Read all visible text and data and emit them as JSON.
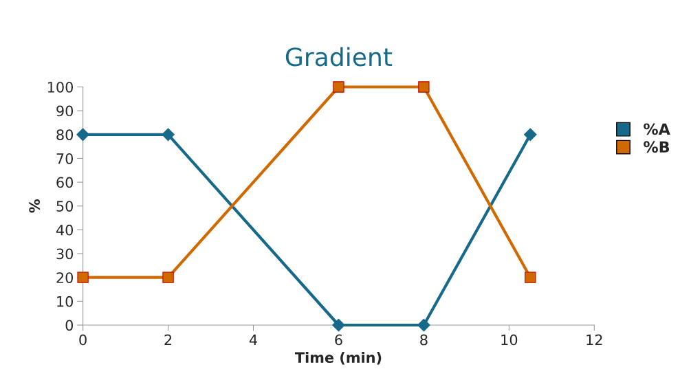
{
  "chart_data": {
    "type": "line",
    "title": "Gradient",
    "xlabel": "Time (min)",
    "ylabel": "%",
    "xlim": [
      0,
      12
    ],
    "xticks": [
      0,
      2,
      4,
      6,
      8,
      10,
      12
    ],
    "ylim": [
      0,
      100
    ],
    "yticks": [
      0,
      10,
      20,
      30,
      40,
      50,
      60,
      70,
      80,
      90,
      100
    ],
    "grid": false,
    "legend": "right",
    "line_style": "solid",
    "series": [
      {
        "name": "%A",
        "color": "#17698a",
        "marker": "diamond",
        "x": [
          0,
          2,
          6,
          8,
          10.5
        ],
        "values": [
          80,
          80,
          0,
          0,
          80
        ]
      },
      {
        "name": "%B",
        "color": "#d06a00",
        "marker": "square",
        "x": [
          0,
          2,
          6,
          8,
          10.5
        ],
        "values": [
          20,
          20,
          100,
          100,
          20
        ]
      }
    ]
  }
}
